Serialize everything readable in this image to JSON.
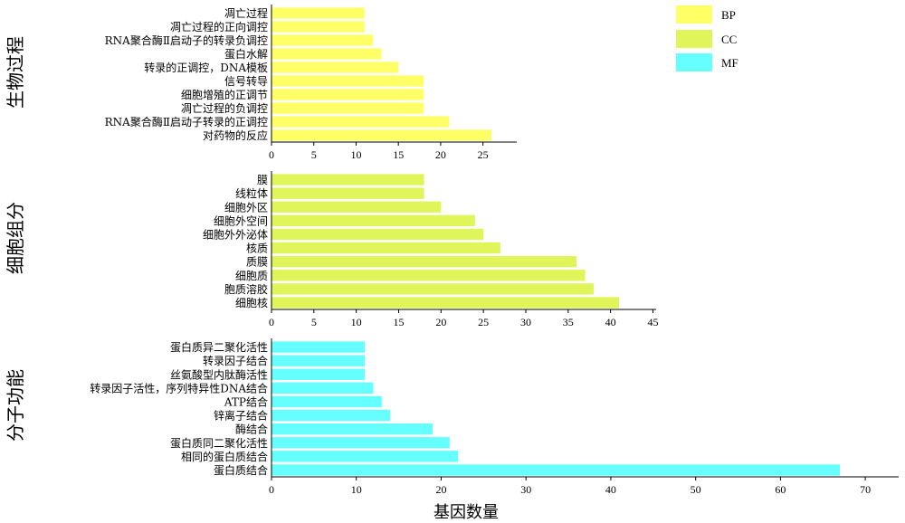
{
  "xlabel": "基因数量",
  "legend": [
    {
      "name": "BP",
      "color": "#ffff66"
    },
    {
      "name": "CC",
      "color": "#e0f55a"
    },
    {
      "name": "MF",
      "color": "#66ffff"
    }
  ],
  "chart_data": [
    {
      "type": "bar",
      "orientation": "horizontal",
      "panel_title": "生物过程",
      "series": "BP",
      "color": "#ffff66",
      "xlim": [
        0,
        29
      ],
      "xticks": [
        0,
        5,
        10,
        15,
        20,
        25
      ],
      "categories": [
        "凋亡过程",
        "凋亡过程的正向调控",
        "RNA聚合酶Ⅱ启动子的转录负调控",
        "蛋白水解",
        "转录的正调控，DNA模板",
        "信号转导",
        "细胞增殖的正调节",
        "凋亡过程的负调控",
        "RNA聚合酶Ⅱ启动子转录的正调控",
        "对药物的反应"
      ],
      "values": [
        11,
        11,
        12,
        13,
        15,
        18,
        18,
        18,
        21,
        26
      ]
    },
    {
      "type": "bar",
      "orientation": "horizontal",
      "panel_title": "细胞组分",
      "series": "CC",
      "color": "#e0f55a",
      "xlim": [
        0,
        45
      ],
      "xticks": [
        0,
        5,
        10,
        15,
        20,
        25,
        30,
        35,
        40,
        45
      ],
      "categories": [
        "膜",
        "线粒体",
        "细胞外区",
        "细胞外空间",
        "细胞外外泌体",
        "核质",
        "质膜",
        "细胞质",
        "胞质溶胶",
        "细胞核"
      ],
      "values": [
        18,
        18,
        20,
        24,
        25,
        27,
        36,
        37,
        38,
        41
      ]
    },
    {
      "type": "bar",
      "orientation": "horizontal",
      "panel_title": "分子功能",
      "series": "MF",
      "color": "#66ffff",
      "xlim": [
        0,
        75
      ],
      "xticks": [
        0,
        10,
        20,
        30,
        40,
        50,
        60,
        70
      ],
      "categories": [
        "蛋白质异二聚化活性",
        "转录因子结合",
        "丝氨酸型内肽酶活性",
        "转录因子活性，序列特异性DNA结合",
        "ATP结合",
        "锌离子结合",
        "酶结合",
        "蛋白质同二聚化活性",
        "相同的蛋白质结合",
        "蛋白质结合"
      ],
      "values": [
        11,
        11,
        11,
        12,
        13,
        14,
        19,
        21,
        22,
        67
      ]
    }
  ]
}
